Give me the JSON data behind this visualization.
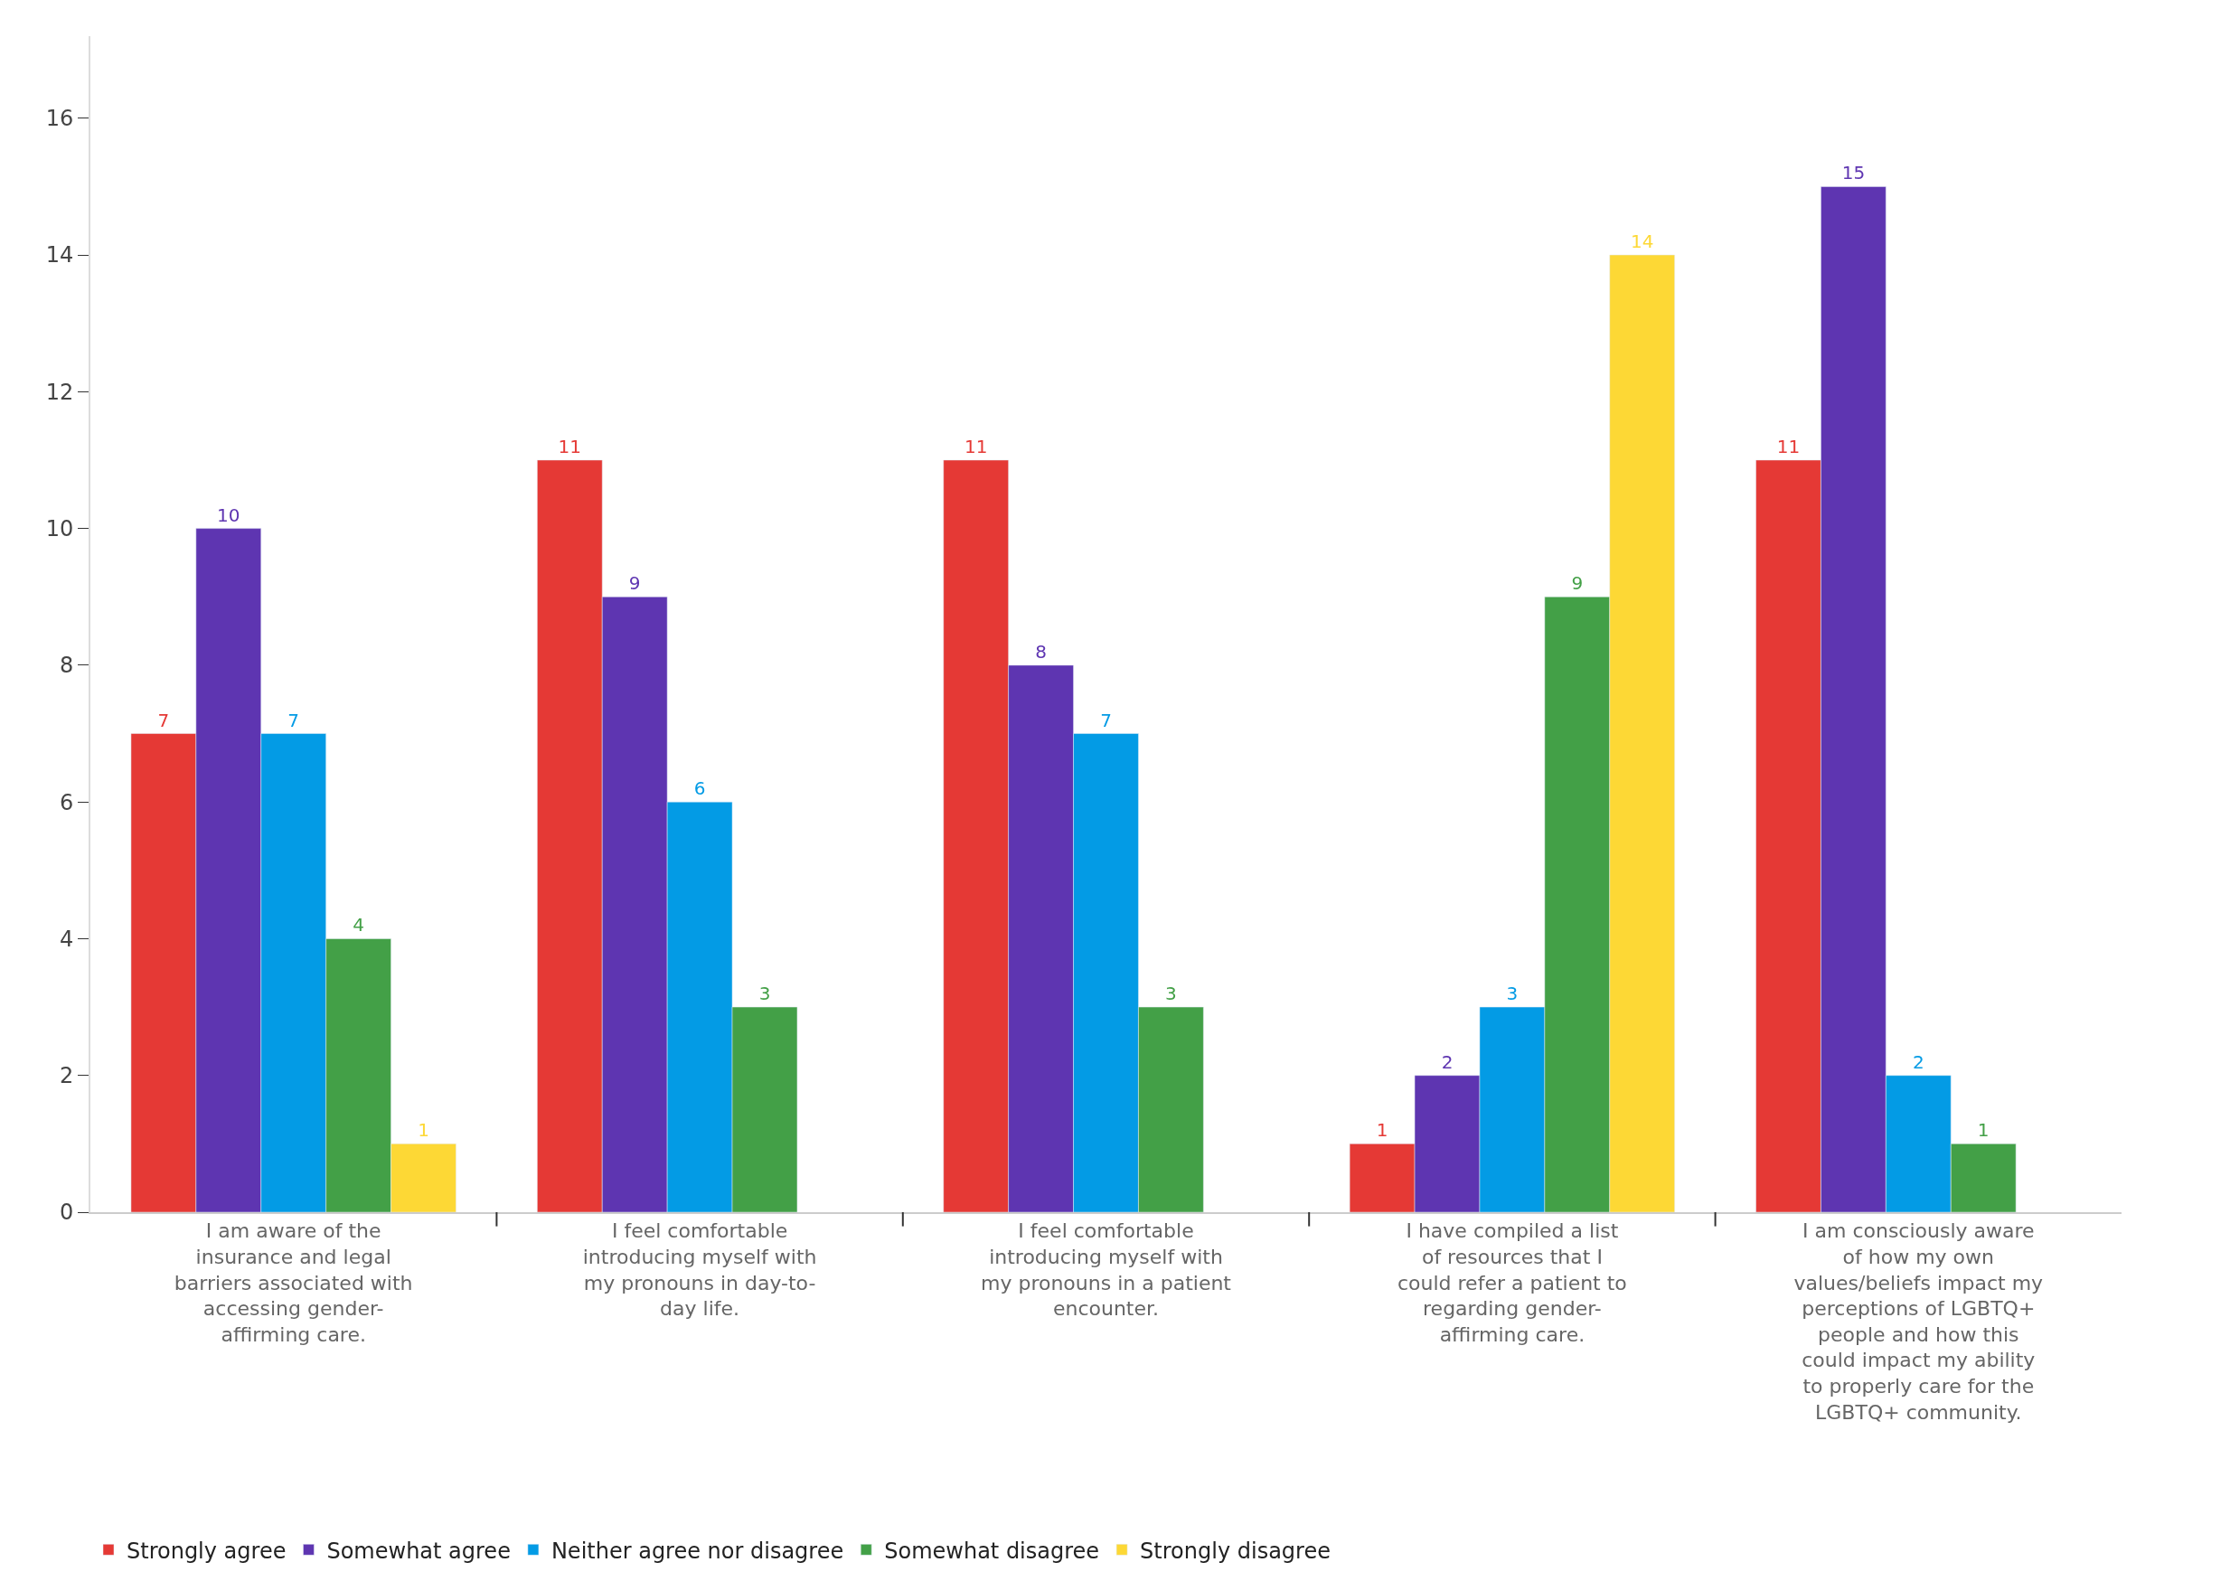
{
  "chart_data": {
    "type": "bar",
    "categories": [
      "I am aware of the insurance and legal barriers associated with accessing gender-affirming care.",
      "I feel comfortable introducing myself with my pronouns in day-to-day life.",
      "I feel comfortable introducing myself with my pronouns in a patient encounter.",
      "I have compiled a list of resources that I could refer a patient to regarding gender-affirming care.",
      "I am consciously aware of how my own values/beliefs impact my perceptions of LGBTQ+ people and how this could impact my ability to properly care for the LGBTQ+ community."
    ],
    "series": [
      {
        "name": "Strongly agree",
        "color": "#e53935",
        "values": [
          7,
          11,
          11,
          1,
          11
        ]
      },
      {
        "name": "Somewhat agree",
        "color": "#5e35b1",
        "values": [
          10,
          9,
          8,
          2,
          15
        ]
      },
      {
        "name": "Neither agree nor disagree",
        "color": "#039be5",
        "values": [
          7,
          6,
          7,
          3,
          2
        ]
      },
      {
        "name": "Somewhat disagree",
        "color": "#43a047",
        "values": [
          4,
          3,
          3,
          9,
          1
        ]
      },
      {
        "name": "Strongly disagree",
        "color": "#fdd835",
        "values": [
          1,
          null,
          null,
          14,
          null
        ]
      }
    ],
    "ylim": [
      0,
      17.2
    ],
    "yticks": [
      0,
      2,
      4,
      6,
      8,
      10,
      12,
      14,
      16
    ],
    "legend": "bottom",
    "data_labels": true
  }
}
